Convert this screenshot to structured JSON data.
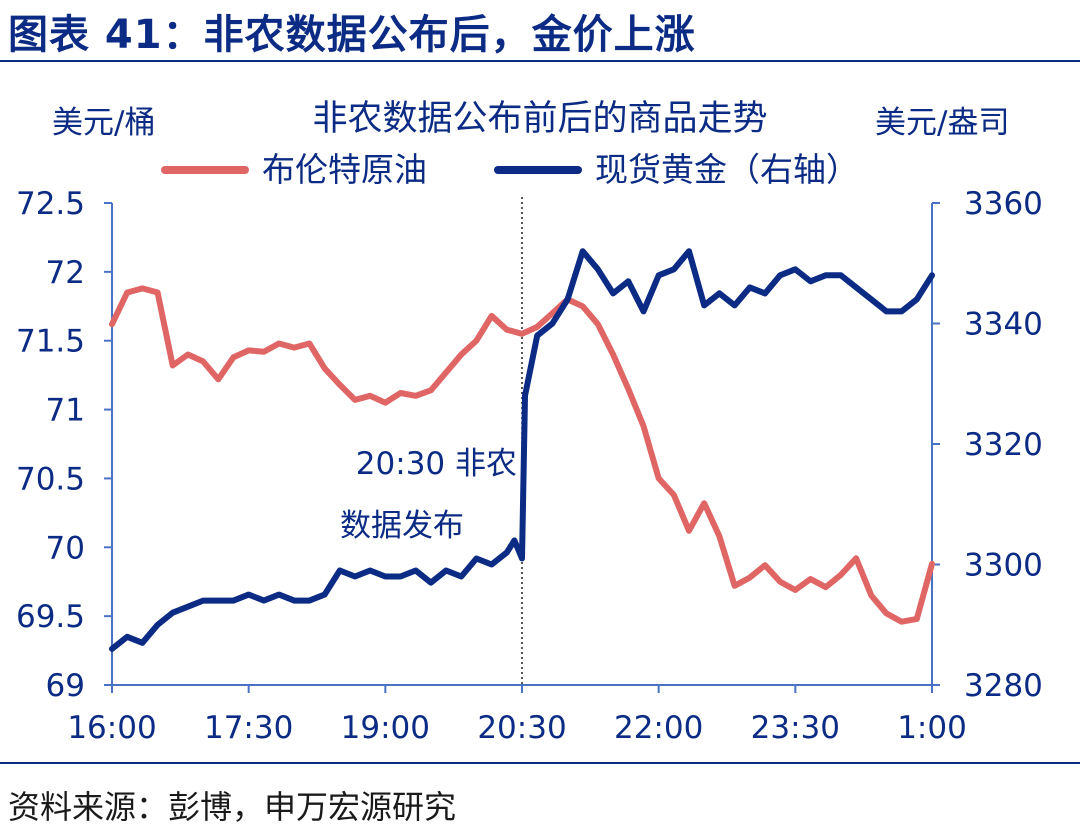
{
  "figure": {
    "title": "图表 41：非农数据公布后，金价上涨",
    "source": "资料来源：彭博，申万宏源研究"
  },
  "chart_data": {
    "type": "line",
    "title": "非农数据公布前后的商品走势",
    "y_left_unit": "美元/桶",
    "y_right_unit": "美元/盎司",
    "xlabel": "",
    "x_ticks": [
      "16:00",
      "17:30",
      "19:00",
      "20:30",
      "22:00",
      "23:30",
      "1:00"
    ],
    "x_range": [
      "16:00",
      "1:00"
    ],
    "y_left_ticks": [
      "72.5",
      "72",
      "71.5",
      "71",
      "70.5",
      "70",
      "69.5",
      "69"
    ],
    "y_left_range": [
      69,
      72.5
    ],
    "y_right_ticks": [
      "3360",
      "3340",
      "3320",
      "3300",
      "3280"
    ],
    "y_right_range": [
      3280,
      3360
    ],
    "grid": false,
    "legend_position": "top",
    "annotation": {
      "line1": "20:30 非农",
      "line2": "数据发布",
      "x": "20:30"
    },
    "series": [
      {
        "name": "布伦特原油",
        "axis": "left",
        "color": "#e06666",
        "x": [
          "16:00",
          "16:10",
          "16:20",
          "16:30",
          "16:40",
          "16:50",
          "17:00",
          "17:10",
          "17:20",
          "17:30",
          "17:40",
          "17:50",
          "18:00",
          "18:10",
          "18:20",
          "18:30",
          "18:40",
          "18:50",
          "19:00",
          "19:10",
          "19:20",
          "19:30",
          "19:40",
          "19:50",
          "20:00",
          "20:10",
          "20:20",
          "20:30",
          "20:40",
          "20:50",
          "21:00",
          "21:10",
          "21:20",
          "21:30",
          "21:40",
          "21:50",
          "22:00",
          "22:10",
          "22:20",
          "22:30",
          "22:40",
          "22:50",
          "23:00",
          "23:10",
          "23:20",
          "23:30",
          "23:40",
          "23:50",
          "00:00",
          "00:10",
          "00:20",
          "00:30",
          "00:40",
          "00:50",
          "1:00"
        ],
        "values": [
          71.62,
          71.85,
          71.88,
          71.85,
          71.32,
          71.4,
          71.35,
          71.22,
          71.38,
          71.43,
          71.42,
          71.48,
          71.45,
          71.48,
          71.3,
          71.18,
          71.07,
          71.1,
          71.05,
          71.12,
          71.1,
          71.14,
          71.27,
          71.4,
          71.5,
          71.68,
          71.58,
          71.55,
          71.6,
          71.7,
          71.8,
          71.75,
          71.62,
          71.4,
          71.15,
          70.88,
          70.5,
          70.38,
          70.12,
          70.32,
          70.08,
          69.72,
          69.78,
          69.87,
          69.75,
          69.69,
          69.77,
          69.71,
          69.8,
          69.92,
          69.65,
          69.52,
          69.46,
          69.48,
          69.88
        ]
      },
      {
        "name": "现货黄金（右轴）",
        "axis": "right",
        "color": "#0b2b84",
        "x": [
          "16:00",
          "16:10",
          "16:20",
          "16:30",
          "16:40",
          "16:50",
          "17:00",
          "17:10",
          "17:20",
          "17:30",
          "17:40",
          "17:50",
          "18:00",
          "18:10",
          "18:20",
          "18:30",
          "18:40",
          "18:50",
          "19:00",
          "19:10",
          "19:20",
          "19:30",
          "19:40",
          "19:50",
          "20:00",
          "20:10",
          "20:20",
          "20:25",
          "20:30",
          "20:32",
          "20:40",
          "20:50",
          "21:00",
          "21:10",
          "21:20",
          "21:30",
          "21:40",
          "21:50",
          "22:00",
          "22:10",
          "22:20",
          "22:30",
          "22:40",
          "22:50",
          "23:00",
          "23:10",
          "23:20",
          "23:30",
          "23:40",
          "23:50",
          "00:00",
          "00:10",
          "00:20",
          "00:30",
          "00:40",
          "00:50",
          "1:00"
        ],
        "values": [
          3286,
          3288,
          3287,
          3290,
          3292,
          3293,
          3294,
          3294,
          3294,
          3295,
          3294,
          3295,
          3294,
          3294,
          3295,
          3299,
          3298,
          3299,
          3298,
          3298,
          3299,
          3297,
          3299,
          3298,
          3301,
          3300,
          3302,
          3304,
          3301,
          3328,
          3338,
          3340,
          3344,
          3352,
          3349,
          3345,
          3347,
          3342,
          3348,
          3349,
          3352,
          3343,
          3345,
          3343,
          3346,
          3345,
          3348,
          3349,
          3347,
          3348,
          3348,
          3346,
          3344,
          3342,
          3342,
          3344,
          3348
        ]
      }
    ]
  }
}
